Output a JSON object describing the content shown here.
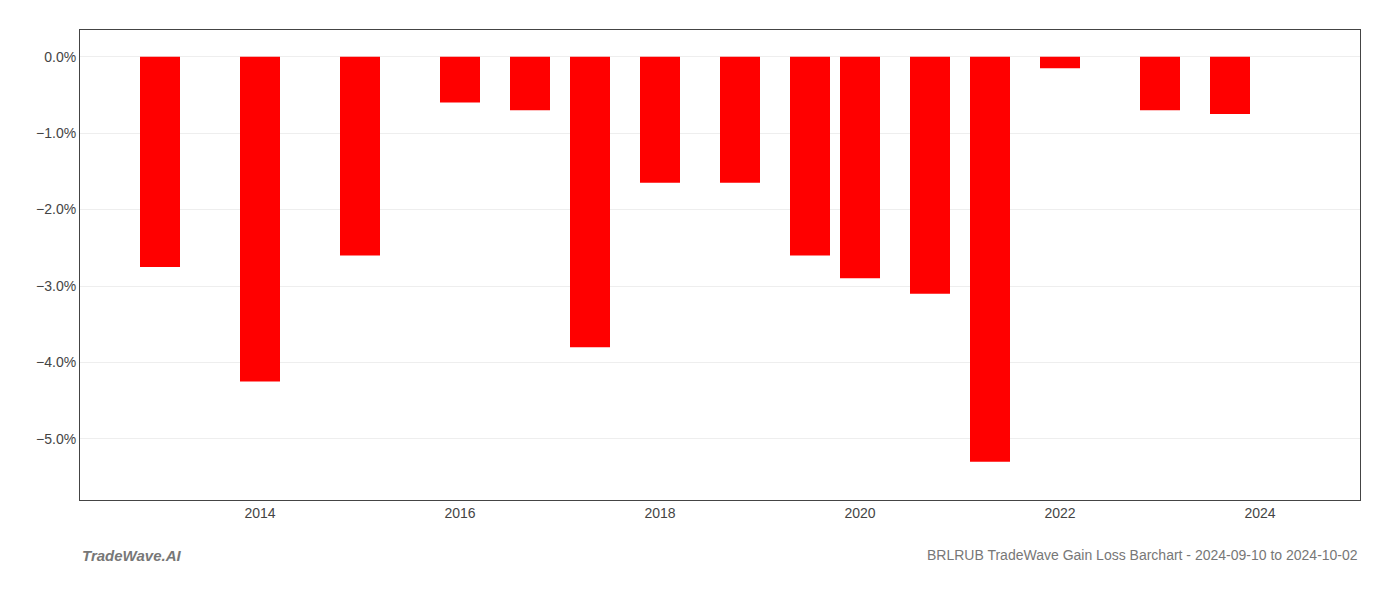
{
  "chart_data": {
    "type": "bar",
    "x": [
      2013,
      2014,
      2015,
      2016,
      2016.7,
      2017.3,
      2018,
      2018.8,
      2019.5,
      2020,
      2020.7,
      2021.3,
      2022,
      2023,
      2023.7
    ],
    "values": [
      -2.75,
      -4.25,
      -2.6,
      -0.6,
      -0.7,
      -3.8,
      -1.65,
      -1.65,
      -2.6,
      -2.9,
      -3.1,
      -5.3,
      -0.15,
      -0.7,
      -0.75
    ],
    "color": "#ff0000",
    "xlim": [
      2012.2,
      2025.0
    ],
    "xticks": [
      2014,
      2016,
      2018,
      2020,
      2022,
      2024
    ],
    "ylim": [
      -5.8,
      0.35
    ],
    "yticks": [
      {
        "value": 0.0,
        "label": "0.0%"
      },
      {
        "value": -1.0,
        "label": "−1.0%"
      },
      {
        "value": -2.0,
        "label": "−2.0%"
      },
      {
        "value": -3.0,
        "label": "−3.0%"
      },
      {
        "value": -4.0,
        "label": "−4.0%"
      },
      {
        "value": -5.0,
        "label": "−5.0%"
      }
    ],
    "grid": true,
    "annotations": [
      "TradeWave.AI",
      "BRLRUB TradeWave Gain Loss Barchart - 2024-09-10 to 2024-10-02"
    ]
  }
}
